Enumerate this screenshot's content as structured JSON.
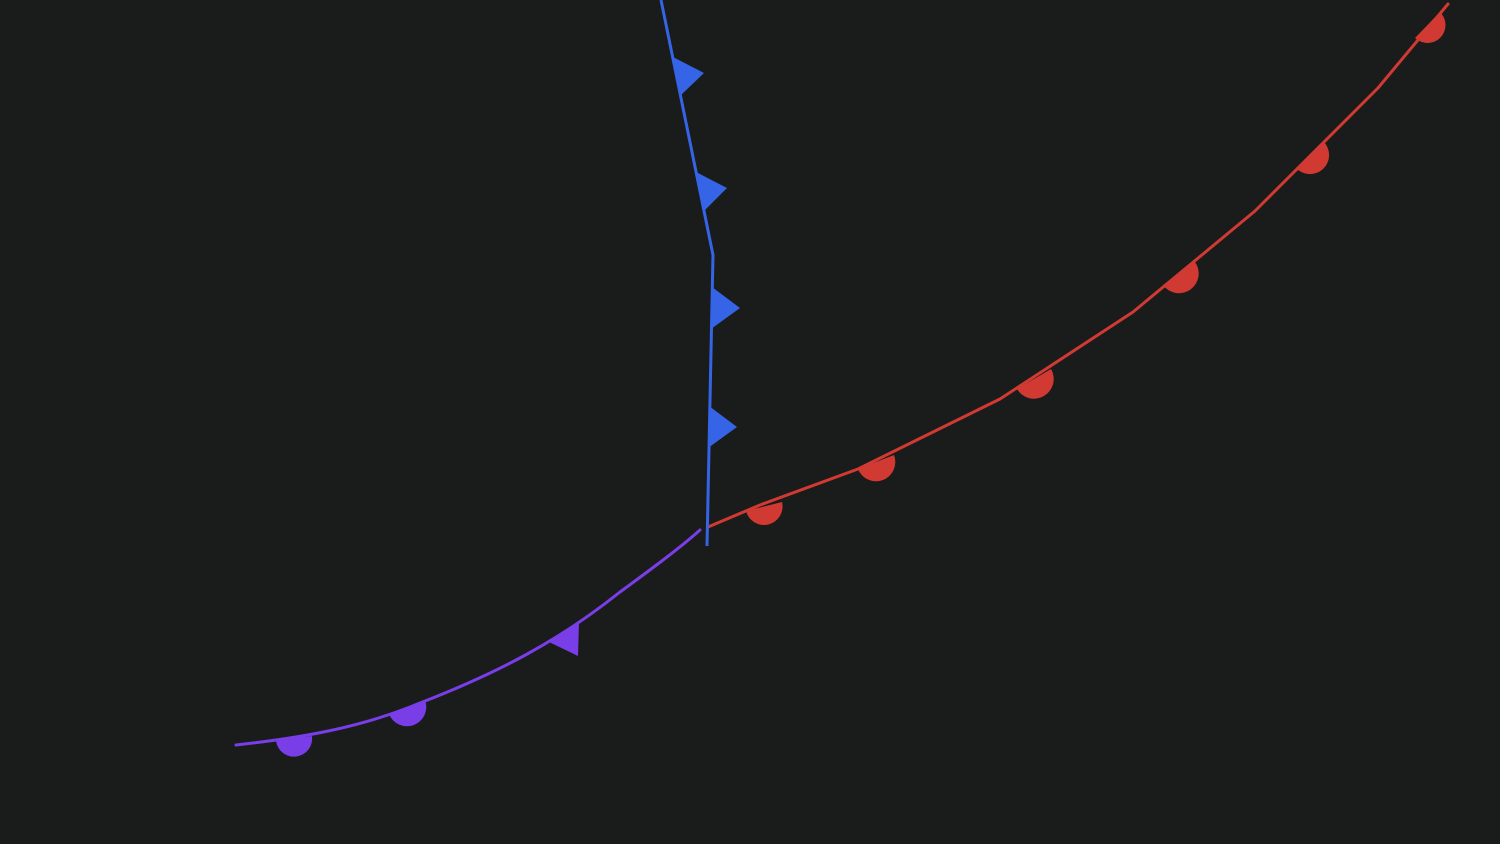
{
  "map": {
    "background_color": "#1a1b1b",
    "fronts": [
      {
        "id": "cold-front",
        "kind": "cold-front",
        "color": "#3565e6",
        "symbol": "triangle",
        "symbol_count": 4
      },
      {
        "id": "warm-front",
        "kind": "warm-front",
        "color": "#d13a33",
        "symbol": "semicircle",
        "symbol_count": 6
      },
      {
        "id": "occluded-front",
        "kind": "occluded-front",
        "color": "#7a3ee8",
        "symbol": "alternating-triangle-semicircle",
        "symbol_count": 3
      }
    ]
  }
}
